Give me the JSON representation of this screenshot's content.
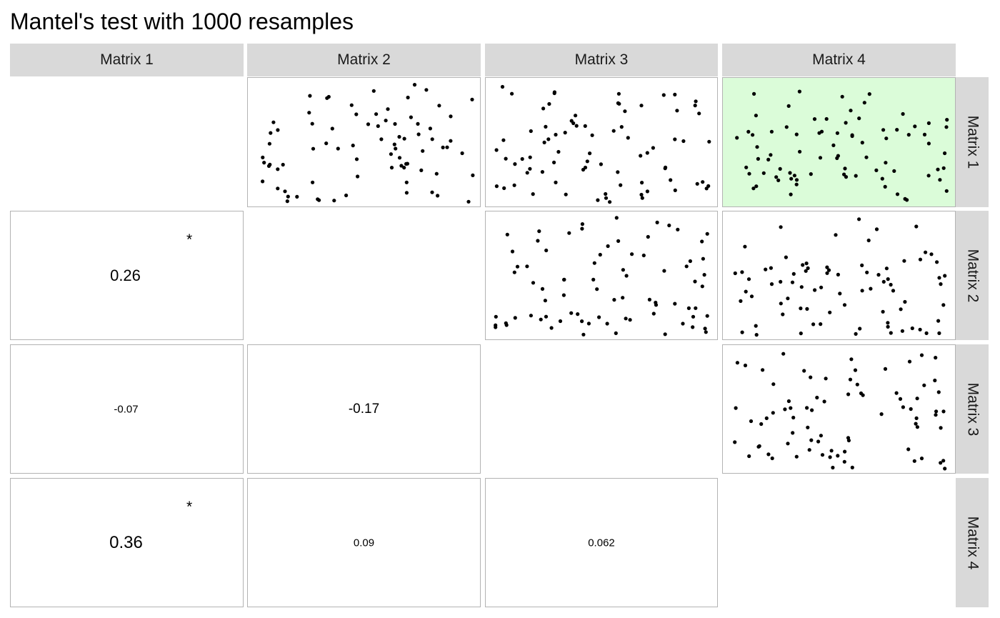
{
  "title": "Mantel's test with 1000 resamples",
  "highlight_color": "#dbfcd9",
  "strip_color": "#d9d9d9",
  "matrices": [
    "Matrix 1",
    "Matrix 2",
    "Matrix 3",
    "Matrix 4"
  ],
  "chart_data": {
    "type": "scatter",
    "layout": "matrix-4x4",
    "upper_panels": [
      {
        "row": "Matrix 1",
        "col": "Matrix 2",
        "highlight": false,
        "n_points": 78
      },
      {
        "row": "Matrix 1",
        "col": "Matrix 3",
        "highlight": false,
        "n_points": 78
      },
      {
        "row": "Matrix 1",
        "col": "Matrix 4",
        "highlight": true,
        "n_points": 78
      },
      {
        "row": "Matrix 2",
        "col": "Matrix 3",
        "highlight": false,
        "n_points": 78
      },
      {
        "row": "Matrix 2",
        "col": "Matrix 4",
        "highlight": false,
        "n_points": 78
      },
      {
        "row": "Matrix 3",
        "col": "Matrix 4",
        "highlight": false,
        "n_points": 78
      }
    ],
    "lower_panels": [
      {
        "row": "Matrix 2",
        "col": "Matrix 1",
        "value": "0.26",
        "signif": "*"
      },
      {
        "row": "Matrix 3",
        "col": "Matrix 1",
        "value": "-0.07",
        "signif": ""
      },
      {
        "row": "Matrix 3",
        "col": "Matrix 2",
        "value": "-0.17",
        "signif": ""
      },
      {
        "row": "Matrix 4",
        "col": "Matrix 1",
        "value": "0.36",
        "signif": "*"
      },
      {
        "row": "Matrix 4",
        "col": "Matrix 2",
        "value": "0.09",
        "signif": ""
      },
      {
        "row": "Matrix 4",
        "col": "Matrix 3",
        "value": "0.062",
        "signif": ""
      }
    ]
  }
}
